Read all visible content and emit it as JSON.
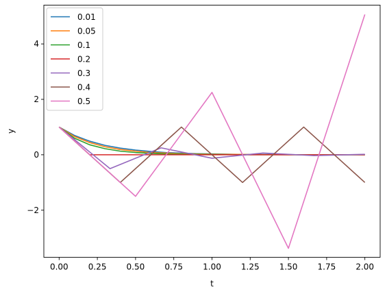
{
  "chart_data": {
    "type": "line",
    "title": "",
    "xlabel": "t",
    "ylabel": "y",
    "xlim": [
      -0.1,
      2.1
    ],
    "ylim": [
      -3.7,
      5.4
    ],
    "xticks": [
      0.0,
      0.25,
      0.5,
      0.75,
      1.0,
      1.25,
      1.5,
      1.75,
      2.0
    ],
    "xtick_labels": [
      "0.00",
      "0.25",
      "0.50",
      "0.75",
      "1.00",
      "1.25",
      "1.50",
      "1.75",
      "2.00"
    ],
    "yticks": [
      -2,
      0,
      2,
      4
    ],
    "ytick_labels": [
      "−2",
      "0",
      "2",
      "4"
    ],
    "grid": false,
    "legend_position": "top-left",
    "series": [
      {
        "name": "0.01",
        "color": "#1f77b4",
        "x": [
          0,
          0.1,
          0.2,
          0.3,
          0.4,
          0.5,
          0.6,
          0.7,
          0.8,
          0.9,
          1.0,
          1.2,
          1.4,
          1.6,
          1.8,
          2.0
        ],
        "y": [
          1.0,
          0.7,
          0.49,
          0.34,
          0.24,
          0.17,
          0.12,
          0.08,
          0.06,
          0.04,
          0.03,
          0.01,
          0.01,
          0.0,
          0.0,
          0.0
        ]
      },
      {
        "name": "0.05",
        "color": "#ff7f0e",
        "x": [
          0,
          0.1,
          0.2,
          0.3,
          0.4,
          0.5,
          0.6,
          0.7,
          0.8,
          1.0,
          1.2,
          1.5,
          1.8,
          2.0
        ],
        "y": [
          1.0,
          0.66,
          0.44,
          0.29,
          0.19,
          0.13,
          0.08,
          0.06,
          0.04,
          0.02,
          0.01,
          0.0,
          0.0,
          0.0
        ]
      },
      {
        "name": "0.1",
        "color": "#2ca02c",
        "x": [
          0,
          0.1,
          0.2,
          0.3,
          0.4,
          0.5,
          0.6,
          0.7,
          0.8,
          1.0,
          1.2,
          1.5,
          1.8,
          2.0
        ],
        "y": [
          1.0,
          0.6,
          0.36,
          0.22,
          0.13,
          0.08,
          0.05,
          0.03,
          0.02,
          0.01,
          0.0,
          0.0,
          0.0,
          0.0
        ]
      },
      {
        "name": "0.2",
        "color": "#d62728",
        "x": [
          0,
          0.2,
          0.4,
          0.6,
          0.8,
          1.0,
          1.2,
          1.4,
          1.6,
          1.8,
          2.0
        ],
        "y": [
          1.0,
          0.0,
          0.0,
          0.0,
          0.0,
          0.0,
          0.0,
          0.0,
          0.0,
          0.0,
          0.0
        ]
      },
      {
        "name": "0.3",
        "color": "#9467bd",
        "x": [
          0,
          0.333,
          0.667,
          1.0,
          1.333,
          1.667,
          2.0
        ],
        "y": [
          1.0,
          -0.5,
          0.25,
          -0.125,
          0.0625,
          -0.031,
          0.016
        ]
      },
      {
        "name": "0.4",
        "color": "#8c564b",
        "x": [
          0,
          0.4,
          0.8,
          1.2,
          1.6,
          2.0
        ],
        "y": [
          1.0,
          -1.0,
          1.0,
          -1.0,
          1.0,
          -1.0
        ]
      },
      {
        "name": "0.5",
        "color": "#e377c2",
        "x": [
          0,
          0.5,
          1.0,
          1.5,
          2.0
        ],
        "y": [
          1.0,
          -1.5,
          2.25,
          -3.375,
          5.0625
        ]
      }
    ]
  }
}
